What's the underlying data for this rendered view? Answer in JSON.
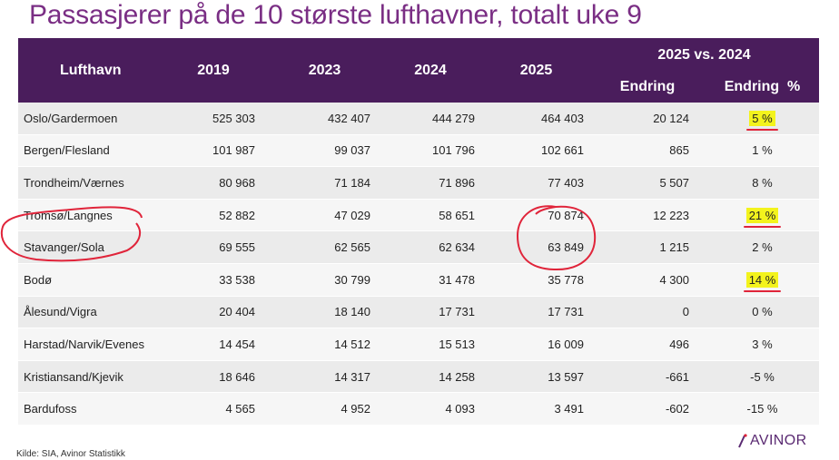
{
  "title": "Passasjerer på de 10 største lufthavner, totalt uke 9",
  "table": {
    "group_header": "2025 vs. 2024",
    "columns": [
      "Lufthavn",
      "2019",
      "2023",
      "2024",
      "2025",
      "Endring",
      "Endring  %"
    ],
    "rows": [
      {
        "airport": "Oslo/Gardermoen",
        "y2019": "525 303",
        "y2023": "432 407",
        "y2024": "444 279",
        "y2025": "464 403",
        "change": "20 124",
        "pct": "5 %",
        "highlight": true
      },
      {
        "airport": "Bergen/Flesland",
        "y2019": "101 987",
        "y2023": "99 037",
        "y2024": "101 796",
        "y2025": "102 661",
        "change": "865",
        "pct": "1 %",
        "highlight": false
      },
      {
        "airport": "Trondheim/Værnes",
        "y2019": "80 968",
        "y2023": "71 184",
        "y2024": "71 896",
        "y2025": "77 403",
        "change": "5 507",
        "pct": "8 %",
        "highlight": false
      },
      {
        "airport": "Tromsø/Langnes",
        "y2019": "52 882",
        "y2023": "47 029",
        "y2024": "58 651",
        "y2025": "70 874",
        "change": "12 223",
        "pct": "21 %",
        "highlight": true
      },
      {
        "airport": "Stavanger/Sola",
        "y2019": "69 555",
        "y2023": "62 565",
        "y2024": "62 634",
        "y2025": "63 849",
        "change": "1 215",
        "pct": "2 %",
        "highlight": false
      },
      {
        "airport": "Bodø",
        "y2019": "33 538",
        "y2023": "30 799",
        "y2024": "31 478",
        "y2025": "35 778",
        "change": "4 300",
        "pct": "14 %",
        "highlight": true
      },
      {
        "airport": "Ålesund/Vigra",
        "y2019": "20 404",
        "y2023": "18 140",
        "y2024": "17 731",
        "y2025": "17 731",
        "change": "0",
        "pct": "0 %",
        "highlight": false
      },
      {
        "airport": "Harstad/Narvik/Evenes",
        "y2019": "14 454",
        "y2023": "14 512",
        "y2024": "15 513",
        "y2025": "16 009",
        "change": "496",
        "pct": "3 %",
        "highlight": false
      },
      {
        "airport": "Kristiansand/Kjevik",
        "y2019": "18 646",
        "y2023": "14 317",
        "y2024": "14 258",
        "y2025": "13 597",
        "change": "-661",
        "pct": "-5 %",
        "highlight": false
      },
      {
        "airport": "Bardufoss",
        "y2019": "4 565",
        "y2023": "4 952",
        "y2024": "4 093",
        "y2025": "3 491",
        "change": "-602",
        "pct": "-15 %",
        "highlight": false
      }
    ]
  },
  "source": "Kilde: SIA, Avinor Statistikk",
  "logo_text": "AVINOR",
  "colors": {
    "title": "#7a2e84",
    "header_bg": "#4a1d5c",
    "highlight": "#f3f31d",
    "annotation_red": "#e0243a"
  },
  "icons": [
    "avinor-logo-icon",
    "annotation-circle-icon"
  ]
}
